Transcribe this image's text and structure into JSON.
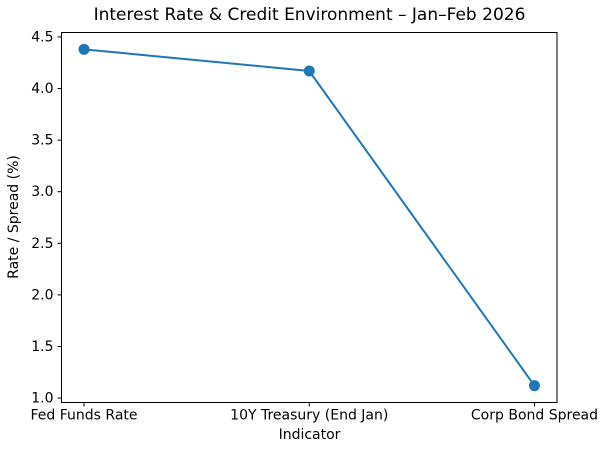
{
  "figure": {
    "background": "#ffffff",
    "text_color": "#000000",
    "spine_color": "#000000"
  },
  "chart_data": {
    "type": "line",
    "title": "Interest Rate & Credit Environment – Jan–Feb 2026",
    "xlabel": "Indicator",
    "ylabel": "Rate / Spread (%)",
    "categories": [
      "Fed Funds Rate",
      "10Y Treasury (End Jan)",
      "Corp Bond Spread"
    ],
    "values": [
      4.38,
      4.17,
      1.12
    ],
    "ylim": [
      0.957,
      4.543
    ],
    "yticks": [
      1.0,
      1.5,
      2.0,
      2.5,
      3.0,
      3.5,
      4.0,
      4.5
    ],
    "ytick_decimals": 1,
    "grid": false,
    "legend": "none",
    "line_color": "#1f77b4",
    "marker": "circle"
  }
}
